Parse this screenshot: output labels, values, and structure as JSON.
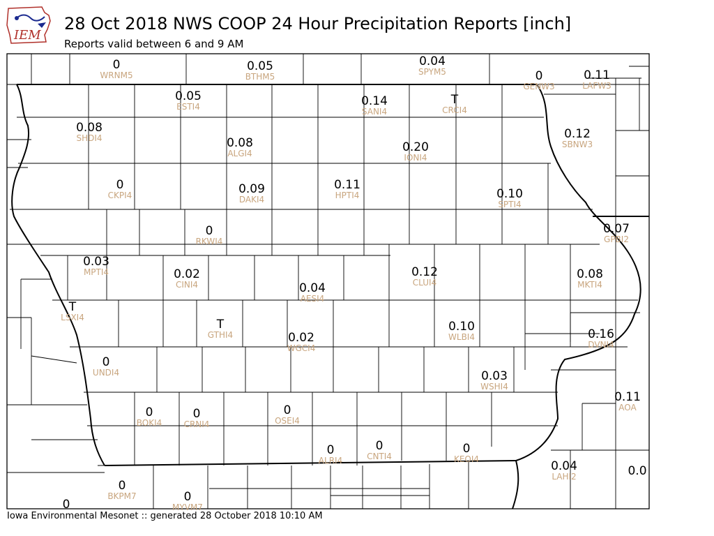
{
  "header": {
    "logo_text": "IEM",
    "title": "28 Oct 2018 NWS COOP 24 Hour Precipitation Reports [inch]",
    "subtitle": "Reports valid between 6 and 9 AM"
  },
  "footer": {
    "text": "Iowa Environmental Mesonet :: generated 28 October 2018 10:10 AM"
  },
  "colors": {
    "station_id": "#c8a57e",
    "value": "#000000",
    "border": "#000000"
  },
  "stations": [
    {
      "id": "WRNM5",
      "value": "0"
    },
    {
      "id": "BTHM5",
      "value": "0.05"
    },
    {
      "id": "SPYM5",
      "value": "0.04"
    },
    {
      "id": "GENW3",
      "value": "0"
    },
    {
      "id": "LAFW3",
      "value": "0.11"
    },
    {
      "id": "ESTI4",
      "value": "0.05"
    },
    {
      "id": "SANI4",
      "value": "0.14"
    },
    {
      "id": "CRCI4",
      "value": "T"
    },
    {
      "id": "SHDI4",
      "value": "0.08"
    },
    {
      "id": "ALGI4",
      "value": "0.08"
    },
    {
      "id": "IONI4",
      "value": "0.20"
    },
    {
      "id": "SBNW3",
      "value": "0.12"
    },
    {
      "id": "CKPI4",
      "value": "0"
    },
    {
      "id": "DAKI4",
      "value": "0.09"
    },
    {
      "id": "HPTI4",
      "value": "0.11"
    },
    {
      "id": "SPTI4",
      "value": "0.10"
    },
    {
      "id": "RKWI4",
      "value": "0"
    },
    {
      "id": "GPBI2",
      "value": "0.07"
    },
    {
      "id": "MPTI4",
      "value": "0.03"
    },
    {
      "id": "CINI4",
      "value": "0.02"
    },
    {
      "id": "CLUI4",
      "value": "0.12"
    },
    {
      "id": "MKTI4",
      "value": "0.08"
    },
    {
      "id": "AESI4",
      "value": "0.04"
    },
    {
      "id": "LSXI4",
      "value": "T"
    },
    {
      "id": "GTHI4",
      "value": "T"
    },
    {
      "id": "WLBI4",
      "value": "0.10"
    },
    {
      "id": "DVNI4",
      "value": "0.16"
    },
    {
      "id": "WGCI4",
      "value": "0.02"
    },
    {
      "id": "UNDI4",
      "value": "0"
    },
    {
      "id": "WSHI4",
      "value": "0.03"
    },
    {
      "id": "AOA",
      "value": "0.11"
    },
    {
      "id": "BOKI4",
      "value": "0"
    },
    {
      "id": "CRNI4",
      "value": "0"
    },
    {
      "id": "OSEI4",
      "value": "0"
    },
    {
      "id": "ALRI4",
      "value": "0"
    },
    {
      "id": "CNTI4",
      "value": "0"
    },
    {
      "id": "KEOI4",
      "value": "0"
    },
    {
      "id": "LAHI2",
      "value": "0.04"
    },
    {
      "id": "",
      "value": "0.0"
    },
    {
      "id": "BKPM7",
      "value": "0"
    },
    {
      "id": "MYVM7",
      "value": "0"
    },
    {
      "id": "",
      "value": "0"
    }
  ]
}
